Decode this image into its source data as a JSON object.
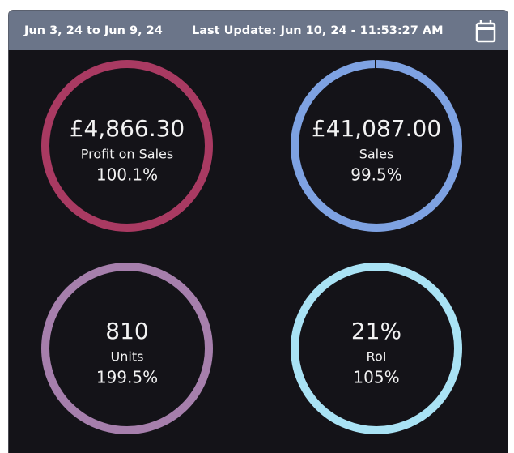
{
  "header": {
    "date_range": "Jun 3, 24 to Jun 9, 24",
    "last_update": "Last Update: Jun 10, 24 - 11:53:27 AM"
  },
  "metrics": [
    {
      "value": "£4,866.30",
      "label": "Profit on Sales",
      "change": "100.1%"
    },
    {
      "value": "£41,087.00",
      "label": "Sales",
      "change": "99.5%"
    },
    {
      "value": "810",
      "label": "Units",
      "change": "199.5%"
    },
    {
      "value": "21%",
      "label": "RoI",
      "change": "105%"
    }
  ]
}
